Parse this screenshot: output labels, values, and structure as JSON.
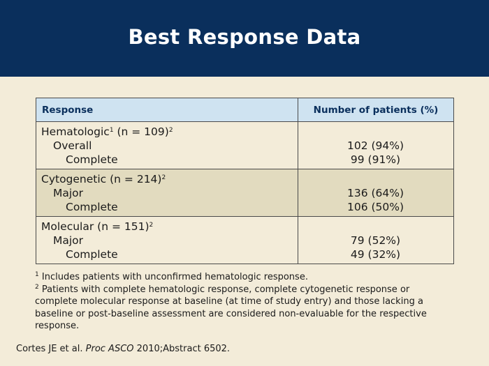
{
  "title": "Best Response Data",
  "table": {
    "headers": [
      "Response",
      "Number of patients (%)"
    ],
    "groups": [
      {
        "label": "Hematologic",
        "label_sup": "1",
        "n_text": " (n = 109)",
        "n_sup": "2",
        "sub": [
          {
            "label": "Overall",
            "value": "102 (94%)"
          },
          {
            "label": "Complete",
            "value": "99 (91%)"
          }
        ]
      },
      {
        "label": "Cytogenetic (n = 214)",
        "n_sup": "2",
        "sub": [
          {
            "label": "Major",
            "value": "136 (64%)"
          },
          {
            "label": "Complete",
            "value": "106 (50%)"
          }
        ]
      },
      {
        "label": "Molecular (n = 151)",
        "n_sup": "2",
        "sub": [
          {
            "label": "Major",
            "value": "79 (52%)"
          },
          {
            "label": "Complete",
            "value": "49 (32%)"
          }
        ]
      }
    ]
  },
  "footnotes": [
    {
      "mark": "1",
      "text": " Includes patients with unconfirmed hematologic response."
    },
    {
      "mark": "2",
      "text": " Patients with complete hematologic response, complete cytogenetic response or complete molecular response at baseline (at time of study entry) and those lacking a baseline or post-baseline assessment are considered non-evaluable for the respective response."
    }
  ],
  "citation": {
    "authors": "Cortes JE et al. ",
    "journal": "Proc ASCO",
    "rest": " 2010;Abstract 6502."
  },
  "colors": {
    "title_bg": "#0a2f5c",
    "page_bg": "#f3ecd9",
    "header_bg": "#cfe3f1",
    "shaded_row": "#e2dbbf"
  }
}
